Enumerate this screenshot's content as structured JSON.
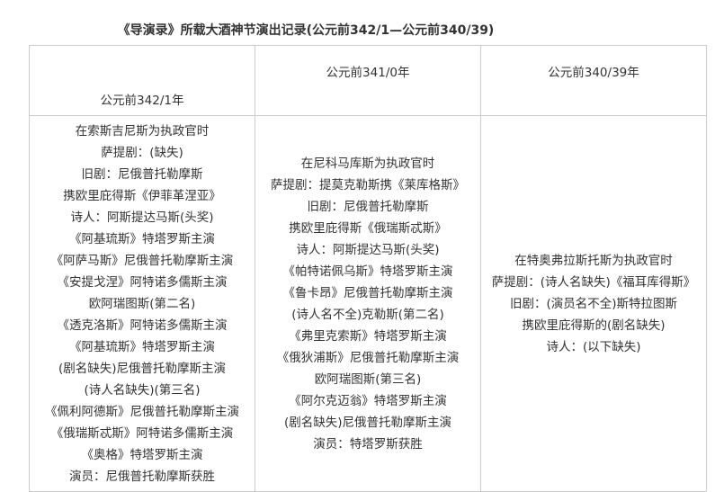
{
  "title": "《导演录》所载大酒神节演出记录(公元前342/1—公元前340/39)",
  "headers": [
    "公元前342/1年",
    "公元前341/0年",
    "公元前340/39年"
  ],
  "columns": [
    [
      "在索斯吉尼斯为执政官时",
      "萨提剧：(缺失)",
      "旧剧：尼俄普托勒摩斯",
      "携欧里庇得斯《伊菲革涅亚》",
      "诗人：阿斯提达马斯(头奖)",
      "《阿基琉斯》特塔罗斯主演",
      "《阿萨马斯》尼俄普托勒摩斯主演",
      "《安提戈涅》阿特诺多儒斯主演",
      "欧阿瑞图斯(第二名)",
      "《透克洛斯》阿特诺多儒斯主演",
      "《阿基琉斯》特塔罗斯主演",
      "(剧名缺失)尼俄普托勒摩斯主演",
      "(诗人名缺失)(第三名)",
      "《佩利阿德斯》尼俄普托勒摩斯主演",
      "《俄瑞斯忒斯》阿特诺多儒斯主演",
      "《奥格》特塔罗斯主演",
      "演员：尼俄普托勒摩斯获胜"
    ],
    [
      "在尼科马库斯为执政官时",
      "萨提剧：提莫克勒斯携《莱库格斯》",
      "旧剧：尼俄普托勒摩斯",
      "携欧里庇得斯《俄瑞斯忒斯》",
      "诗人：阿斯提达马斯(头奖)",
      "《帕特诺佩乌斯》特塔罗斯主演",
      "《鲁卡昂》尼俄普托勒摩斯主演",
      "(诗人名不全)克勒斯(第二名)",
      "《弗里克索斯》特塔罗斯主演",
      "《俄狄浦斯》尼俄普托勒摩斯主演",
      "欧阿瑞图斯(第三名)",
      "《阿尔克迈翁》特塔罗斯主演",
      "(剧名缺失)尼俄普托勒摩斯主演",
      "演员：特塔罗斯获胜"
    ],
    [
      "在特奥弗拉斯托斯为执政官时",
      "萨提剧：(诗人名缺失)《福耳库得斯》",
      "旧剧：(演员名不全)斯特拉图斯",
      "携欧里庇得斯的(剧名缺失)",
      "诗人：(以下缺失)"
    ]
  ]
}
